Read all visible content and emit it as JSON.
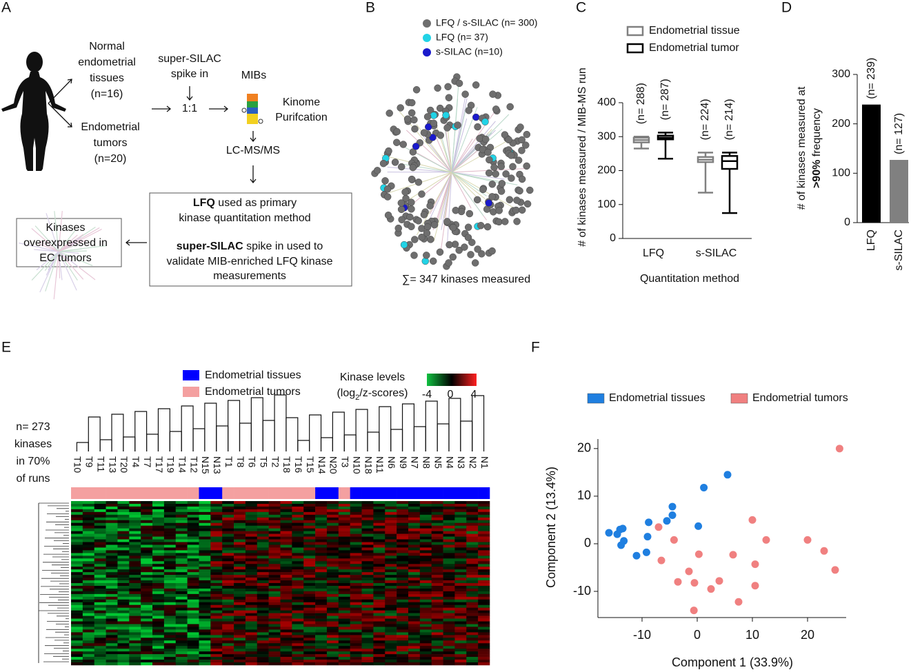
{
  "panel_labels": [
    "A",
    "B",
    "C",
    "D",
    "E",
    "F"
  ],
  "panel_a": {
    "normal": [
      "Normal",
      "endometrial",
      "tissues",
      "(n=16)"
    ],
    "tumors": [
      "Endometrial",
      "tumors",
      "(n=20)"
    ],
    "spike": [
      "super-SILAC",
      "spike in"
    ],
    "ratio": "1:1",
    "mibs": "MIBs",
    "kinome": [
      "Kinome",
      "Purifcation"
    ],
    "lcms": "LC-MS/MS",
    "method_box": {
      "line1": [
        "LFQ",
        " used as primary"
      ],
      "line2": "kinase quantitation method",
      "line3": [
        "super-SILAC",
        " spike in used to"
      ],
      "line4": "validate MIB-enriched LFQ kinase",
      "line5": "measurements"
    },
    "result_box": [
      "Kinases",
      "overexpressed in",
      "EC tumors"
    ]
  },
  "panel_b": {
    "legend": [
      {
        "name": "LFQ / s-SILAC (n= 300)",
        "color": "#6e6e6e"
      },
      {
        "name": "LFQ  (n= 37)",
        "color": "#22d3e6"
      },
      {
        "name": "s-SILAC (n=10)",
        "color": "#1a1acc"
      }
    ],
    "sum": "∑= 347 kinases measured"
  },
  "chart_data": [
    {
      "type": "box",
      "ylabel": "# of kinases measured / MIB-MS run",
      "xlabel": "Quantitation method",
      "categories": [
        "LFQ",
        "s-SILAC"
      ],
      "series": [
        {
          "name": "Endometrial tissue",
          "color": "#808080",
          "min": [
            265,
            135
          ],
          "q1": [
            283,
            225
          ],
          "median": [
            290,
            232
          ],
          "q3": [
            297,
            240
          ],
          "max": [
            300,
            253
          ],
          "n_labels": [
            "(n= 288)",
            "(n= 224)"
          ]
        },
        {
          "name": "Endometrial tumor",
          "color": "#000000",
          "min": [
            235,
            75
          ],
          "q1": [
            292,
            205
          ],
          "median": [
            297,
            228
          ],
          "q3": [
            303,
            243
          ],
          "max": [
            312,
            253
          ],
          "n_labels": [
            "(n= 287)",
            "(n= 214)"
          ]
        }
      ],
      "ylim": [
        0,
        400
      ],
      "yticks": [
        0,
        100,
        200,
        300,
        400
      ]
    },
    {
      "type": "bar",
      "ylabel": [
        "# of kinases measured at",
        ">90%",
        " frequency"
      ],
      "categories": [
        "LFQ",
        "s-SILAC"
      ],
      "values": [
        239,
        127
      ],
      "value_labels": [
        "(n= 239)",
        "(n= 127)"
      ],
      "colors": [
        "#000000",
        "#808080"
      ],
      "ylim": [
        0,
        300
      ],
      "yticks": [
        0,
        100,
        200,
        300
      ]
    },
    {
      "type": "heatmap",
      "row_note": [
        "n= 273",
        "kinases",
        "in 70%",
        "of runs"
      ],
      "series": [
        {
          "name": "Endometrial tissues",
          "color": "#0000ff"
        },
        {
          "name": "Endometrial tumors",
          "color": "#f4a0a0"
        }
      ],
      "scale_title": [
        "Kinase levels",
        "(log",
        "2",
        "/z-scores)"
      ],
      "scale_ticks": [
        -4,
        0,
        4
      ],
      "samples": [
        "T10",
        "T9",
        "T11",
        "T13",
        "T20",
        "T4",
        "T7",
        "T17",
        "T19",
        "T14",
        "T12",
        "N15",
        "N13",
        "T1",
        "T8",
        "T6",
        "T5",
        "T2",
        "T18",
        "T16",
        "T15",
        "N14",
        "N20",
        "T3",
        "N10",
        "N18",
        "N11",
        "N6",
        "N9",
        "N7",
        "N8",
        "N5",
        "N4",
        "N3",
        "N2",
        "N1"
      ],
      "sample_group": [
        1,
        1,
        1,
        1,
        1,
        1,
        1,
        1,
        1,
        1,
        1,
        0,
        0,
        1,
        1,
        1,
        1,
        1,
        1,
        1,
        1,
        0,
        0,
        1,
        0,
        0,
        0,
        0,
        0,
        0,
        0,
        0,
        0,
        0,
        0,
        0
      ]
    },
    {
      "type": "scatter",
      "xlabel": "Component 1 (33.9%)",
      "ylabel": "Component 2 (13.4%)",
      "series": [
        {
          "name": "Endometrial tissues",
          "color": "#1f7fe0",
          "x": [
            -16,
            -14.5,
            -14,
            -13.5,
            -13.3,
            -13.8,
            -11,
            -9.2,
            -9,
            -8.8,
            -5.5,
            -4.5,
            -4.5,
            0.2,
            1.2,
            5.5
          ],
          "y": [
            2.3,
            2,
            3,
            3.2,
            0.6,
            -0.3,
            -2.5,
            -1.8,
            1.5,
            4.5,
            4.8,
            6,
            7.8,
            3.7,
            11.8,
            14.5
          ]
        },
        {
          "name": "Endometrial tumors",
          "color": "#f08080",
          "x": [
            -7,
            -6.5,
            -4.2,
            -1.5,
            0.3,
            -0.5,
            -3.5,
            -0.6,
            2.5,
            4,
            6.5,
            10,
            10.5,
            10.5,
            12.5,
            7.5,
            20,
            23,
            25,
            25.8
          ],
          "y": [
            3.5,
            -3.5,
            0.8,
            -5.8,
            -2.2,
            -8.2,
            -8,
            -14,
            -9.5,
            -7.8,
            -2.3,
            5,
            -4.3,
            -8.8,
            0.8,
            -12.2,
            0.8,
            -1.5,
            -5.5,
            20
          ]
        }
      ],
      "xlim": [
        -18,
        27
      ],
      "ylim": [
        -15.5,
        22
      ],
      "xticks": [
        -10,
        0,
        10,
        20
      ],
      "yticks": [
        -10,
        0,
        10,
        20
      ]
    }
  ]
}
